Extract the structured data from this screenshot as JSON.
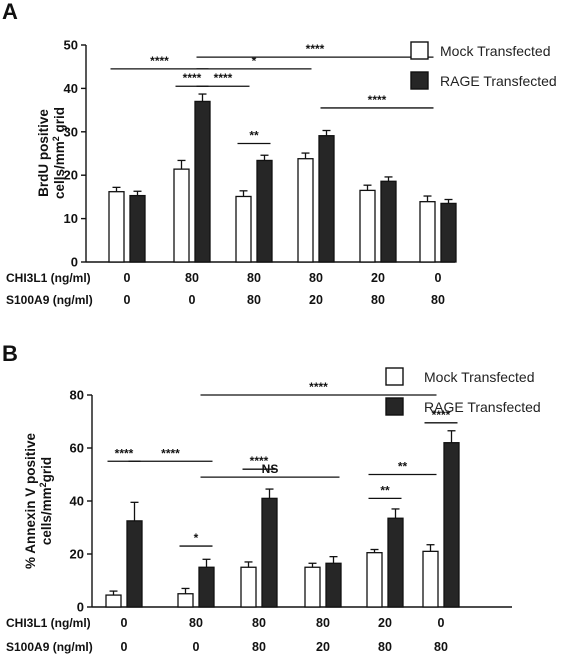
{
  "chart_data": [
    {
      "panel": "A",
      "type": "bar",
      "ylabel_line1": "BrdU positive",
      "ylabel_line2_pre": "cells/mm",
      "ylabel_line2_sup": "2",
      "ylabel_line2_post": " grid",
      "ylim": [
        0,
        50
      ],
      "yticks": [
        0,
        10,
        20,
        30,
        40,
        50
      ],
      "series": [
        {
          "name": "Mock Transfected",
          "color": "#ffffff",
          "values": [
            16.2,
            21.4,
            15.1,
            23.8,
            16.5,
            13.9
          ],
          "errors": [
            1.0,
            2.0,
            1.3,
            1.3,
            1.2,
            1.3
          ]
        },
        {
          "name": "RAGE Transfected",
          "color": "#262626",
          "values": [
            15.3,
            37.0,
            23.4,
            29.1,
            18.6,
            13.5
          ],
          "errors": [
            1.0,
            1.7,
            1.2,
            1.2,
            1.0,
            0.9
          ]
        }
      ],
      "conditions": {
        "row1_label": "CHI3L1 (ng/ml)",
        "row1": [
          "0",
          "80",
          "80",
          "80",
          "20",
          "0"
        ],
        "row2_label": "S100A9 (ng/ml)",
        "row2": [
          "0",
          "0",
          "80",
          "20",
          "80",
          "80"
        ]
      },
      "significance": [
        {
          "from": [
            0,
            0
          ],
          "to": [
            1,
            1
          ],
          "y": 44.5,
          "label": "****"
        },
        {
          "from": [
            1,
            0
          ],
          "to": [
            1,
            1
          ],
          "y": 40.5,
          "label": "****"
        },
        {
          "from": [
            1,
            1
          ],
          "to": [
            5,
            0
          ],
          "y": 47.2,
          "label": "****"
        },
        {
          "from": [
            1,
            1
          ],
          "to": [
            3,
            0
          ],
          "y": 44.5,
          "label": "*"
        },
        {
          "from": [
            1,
            1
          ],
          "to": [
            2,
            0
          ],
          "y": 40.5,
          "label": "****"
        },
        {
          "from": [
            2,
            0
          ],
          "to": [
            2,
            1
          ],
          "y": 27.3,
          "label": "**"
        },
        {
          "from": [
            3,
            1
          ],
          "to": [
            5,
            0
          ],
          "y": 35.5,
          "label": "****"
        }
      ]
    },
    {
      "panel": "B",
      "type": "bar",
      "ylabel_line1": "% Annexin V positive",
      "ylabel_line2_pre": "cells/mm",
      "ylabel_line2_sup": "2",
      "ylabel_line2_post": "grid",
      "ylim": [
        0,
        80
      ],
      "yticks": [
        0,
        20,
        40,
        60,
        80
      ],
      "series": [
        {
          "name": "Mock Transfected",
          "color": "#ffffff",
          "values": [
            4.5,
            5.0,
            15.0,
            15.0,
            20.5,
            21.0
          ],
          "errors": [
            1.5,
            2.0,
            2.0,
            1.5,
            1.2,
            2.5
          ]
        },
        {
          "name": "RAGE Transfected",
          "color": "#262626",
          "values": [
            32.5,
            15.0,
            41.0,
            16.5,
            33.5,
            62.0
          ],
          "errors": [
            7.0,
            3.0,
            3.5,
            2.5,
            3.5,
            4.5
          ]
        }
      ],
      "conditions": {
        "row1_label": "CHI3L1 (ng/ml)",
        "row1": [
          "0",
          "80",
          "80",
          "80",
          "20",
          "0"
        ],
        "row2_label": "S100A9 (ng/ml)",
        "row2": [
          "0",
          "0",
          "80",
          "20",
          "80",
          "80"
        ]
      },
      "significance": [
        {
          "from": [
            0,
            0
          ],
          "to": [
            0,
            1
          ],
          "y": 55.0,
          "label": "****"
        },
        {
          "from": [
            0,
            1
          ],
          "to": [
            1,
            1
          ],
          "y": 55.0,
          "label": "****"
        },
        {
          "from": [
            1,
            0
          ],
          "to": [
            1,
            1
          ],
          "y": 23.0,
          "label": "*"
        },
        {
          "from": [
            1,
            1
          ],
          "to": [
            5,
            0
          ],
          "y": 80.0,
          "label": "****"
        },
        {
          "from": [
            1,
            1
          ],
          "to": [
            3,
            1
          ],
          "y": 49.0,
          "label": "NS"
        },
        {
          "from": [
            2,
            0
          ],
          "to": [
            2,
            1
          ],
          "y": 52.0,
          "label": "****"
        },
        {
          "from": [
            4,
            0
          ],
          "to": [
            4,
            1
          ],
          "y": 41.0,
          "label": "**"
        },
        {
          "from": [
            4,
            0
          ],
          "to": [
            5,
            0
          ],
          "y": 50.0,
          "label": "**"
        },
        {
          "from": [
            5,
            0
          ],
          "to": [
            5,
            1
          ],
          "y": 69.5,
          "label": "****"
        }
      ]
    }
  ]
}
